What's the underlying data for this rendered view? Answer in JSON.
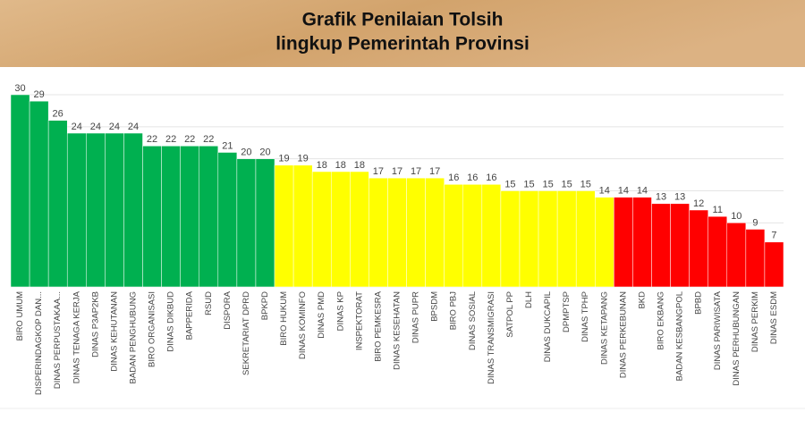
{
  "chart_data": {
    "type": "bar",
    "title": "Grafik Penilaian Tolsih",
    "subtitle": "lingkup Pemerintah Provinsi",
    "categories": [
      "BIRO UMUM",
      "DISPERINDAGKOP DAN...",
      "DINAS PERPUSTAKAA...",
      "DINAS TENAGA KERJA",
      "DINAS P3AP2KB",
      "DINAS KEHUTANAN",
      "BADAN PENGHUBUNG",
      "BIRO ORGANISASI",
      "DINAS DIKBUD",
      "BAPPERIDA",
      "RSUD",
      "DISPORA",
      "SEKRETARIAT DPRD",
      "BPKPD",
      "BIRO HUKUM",
      "DINAS KOMINFO",
      "DINAS PMD",
      "DINAS KP",
      "INSPEKTORAT",
      "BIRO PEMKESRA",
      "DINAS KESEHATAN",
      "DINAS PUPR",
      "BPSDM",
      "BIRO PBJ",
      "DINAS SOSIAL",
      "DINAS TRANSMIGRASI",
      "SATPOL PP",
      "DLH",
      "DINAS DUKCAPIL",
      "DPMPTSP",
      "DINAS TPHP",
      "DINAS KETAPANG",
      "DINAS PERKEBUNAN",
      "BKD",
      "BIRO EKBANG",
      "BADAN KESBANGPOL",
      "BPBD",
      "DINAS PARIWISATA",
      "DINAS PERHUBUNGAN",
      "DINAS PERKIM",
      "DINAS ESDM"
    ],
    "values": [
      30,
      29,
      26,
      24,
      24,
      24,
      24,
      22,
      22,
      22,
      22,
      21,
      20,
      20,
      19,
      19,
      18,
      18,
      18,
      17,
      17,
      17,
      17,
      16,
      16,
      16,
      15,
      15,
      15,
      15,
      15,
      14,
      14,
      14,
      13,
      13,
      12,
      11,
      10,
      9,
      7
    ],
    "colors": [
      "#00b050",
      "#00b050",
      "#00b050",
      "#00b050",
      "#00b050",
      "#00b050",
      "#00b050",
      "#00b050",
      "#00b050",
      "#00b050",
      "#00b050",
      "#00b050",
      "#00b050",
      "#00b050",
      "#ffff00",
      "#ffff00",
      "#ffff00",
      "#ffff00",
      "#ffff00",
      "#ffff00",
      "#ffff00",
      "#ffff00",
      "#ffff00",
      "#ffff00",
      "#ffff00",
      "#ffff00",
      "#ffff00",
      "#ffff00",
      "#ffff00",
      "#ffff00",
      "#ffff00",
      "#ffff00",
      "#ff0000",
      "#ff0000",
      "#ff0000",
      "#ff0000",
      "#ff0000",
      "#ff0000",
      "#ff0000",
      "#ff0000",
      "#ff0000"
    ],
    "ylim": [
      0,
      30
    ],
    "yticks": [
      0,
      5,
      10,
      15,
      20,
      25,
      30
    ],
    "grid": true
  }
}
